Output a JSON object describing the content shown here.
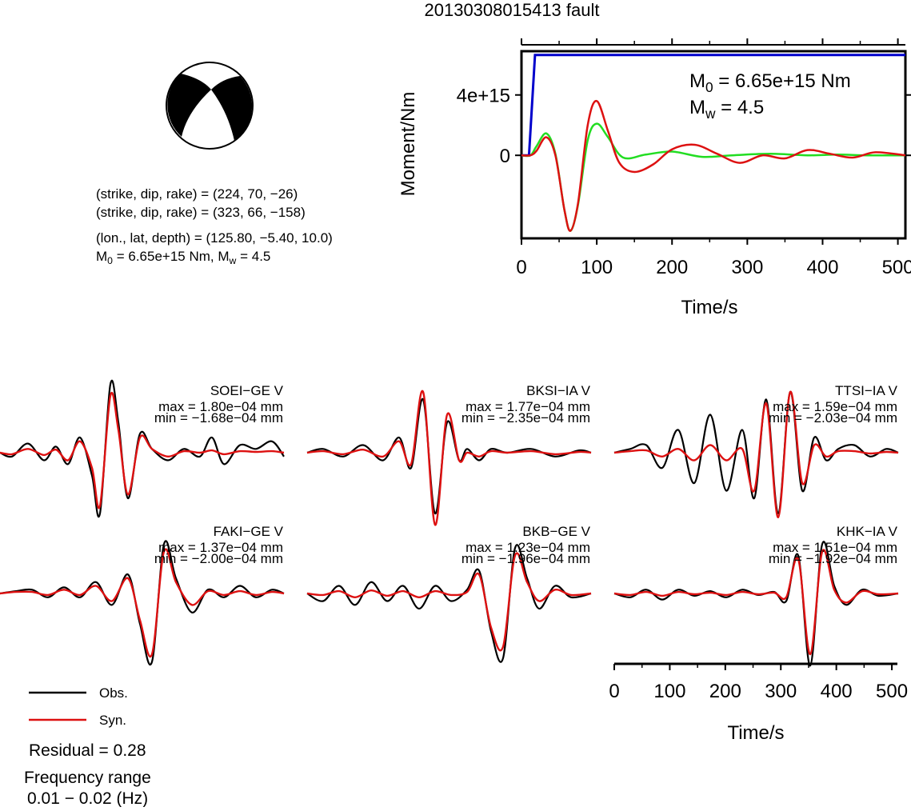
{
  "title": "20130308015413 fault",
  "colors": {
    "observed": "#000000",
    "synthetic": "#dd1111",
    "moment": "#0000cc",
    "source_fit": "#22dd22"
  },
  "focal_info": {
    "plane1": "(strike, dip, rake) = (224, 70, −26)",
    "plane2": "(strike, dip, rake) = (323, 66, −158)",
    "location": "(lon., lat, depth) = (125.80, −5.40, 10.0)",
    "moment_prefix": "M",
    "moment_sub": "0",
    "moment_rest": " = 6.65e+15 Nm, M",
    "mag_sub": "w",
    "mag_rest": " = 4.5"
  },
  "moment_plot": {
    "ylabel": "Moment/Nm",
    "xlabel": "Time/s",
    "x_ticks": [
      "0",
      "100",
      "200",
      "300",
      "400",
      "500"
    ],
    "y_ticks": [
      "0",
      "4e+15"
    ],
    "annot_m0": {
      "sym": "M",
      "sub": "0",
      "rest": " = 6.65e+15 Nm"
    },
    "annot_mw": {
      "sym": "M",
      "sub": "w",
      "rest": " = 4.5"
    }
  },
  "chart_data": [
    {
      "type": "line",
      "title": "",
      "xlabel": "Time/s",
      "ylabel": "Moment/Nm",
      "xlim": [
        0,
        510
      ],
      "ylim": [
        -5500000000000000.0,
        6900000000000000.0
      ],
      "series": [
        {
          "name": "",
          "color": "#0000cc",
          "x": [
            0,
            10,
            18,
            22,
            510
          ],
          "y": [
            0,
            0,
            6650000000000000.0,
            6650000000000000.0,
            6650000000000000.0
          ]
        },
        {
          "name": "",
          "color": "#22dd22",
          "x": [
            0,
            12,
            20,
            33,
            45,
            57,
            65,
            75,
            88,
            100,
            115,
            135,
            165,
            200,
            240,
            280,
            330,
            380,
            420,
            460,
            510
          ],
          "y": [
            0,
            0,
            600000000000000.0,
            1450000000000000.0,
            100000000000000.0,
            -3600000000000000.0,
            -5000000000000000.0,
            -3300000000000000.0,
            1000000000000000.0,
            2100000000000000.0,
            1200000000000000.0,
            -150000000000000.0,
            50000000000000.0,
            250000000000000.0,
            -100000000000000.0,
            0.0,
            100000000000000.0,
            0.0,
            50000000000000.0,
            0.0,
            0.0
          ]
        },
        {
          "name": "",
          "color": "#dd1111",
          "x": [
            0,
            12,
            20,
            33,
            45,
            57,
            65,
            75,
            88,
            100,
            115,
            130,
            150,
            175,
            200,
            230,
            260,
            290,
            320,
            350,
            380,
            410,
            440,
            470,
            510
          ],
          "y": [
            0,
            0,
            300000000000000.0,
            1200000000000000.0,
            0.0,
            -3600000000000000.0,
            -5000000000000000.0,
            -3200000000000000.0,
            2000000000000000.0,
            3600000000000000.0,
            1600000000000000.0,
            -500000000000000.0,
            -1100000000000000.0,
            -600000000000000.0,
            400000000000000.0,
            700000000000000.0,
            100000000000000.0,
            -500000000000000.0,
            0.0,
            -200000000000000.0,
            350000000000000.0,
            100000000000000.0,
            -150000000000000.0,
            200000000000000.0,
            0.0
          ]
        }
      ]
    },
    {
      "type": "line",
      "title": "",
      "xlabel": "Time/s",
      "xlim": [
        0,
        510
      ],
      "ylim": [
        -1,
        1
      ],
      "stations": [
        {
          "name": "SOEI−GE V",
          "max": "max = 1.80e−04 mm",
          "min": "min = −1.68e−04 mm",
          "x": [
            0,
            15,
            35,
            55,
            70,
            85,
            100,
            115,
            125,
            138,
            148,
            160,
            175,
            190,
            210,
            230,
            250,
            265,
            280,
            300,
            320,
            340,
            355
          ],
          "obs": [
            0,
            -0.05,
            0.12,
            -0.1,
            0.08,
            -0.15,
            0.2,
            -0.3,
            -0.8,
            0.9,
            0.4,
            -0.6,
            0.25,
            0.05,
            -0.1,
            0.05,
            -0.05,
            0.2,
            -0.15,
            0.1,
            0.05,
            0.15,
            -0.05
          ],
          "syn": [
            0,
            -0.02,
            0.05,
            -0.03,
            0.04,
            -0.1,
            0.15,
            -0.2,
            -0.7,
            0.75,
            0.3,
            -0.55,
            0.2,
            0.05,
            -0.05,
            0.02,
            0.0,
            0.03,
            -0.02,
            0.02,
            0.01,
            0.02,
            0.0
          ]
        },
        {
          "name": "BKSI−IA V",
          "max": "max = 1.77e−04 mm",
          "min": "min = −2.35e−04 mm",
          "x": [
            0,
            20,
            45,
            70,
            95,
            115,
            130,
            145,
            160,
            175,
            190,
            200,
            215,
            230,
            250,
            280,
            310,
            340,
            355
          ],
          "obs": [
            0,
            0.05,
            -0.05,
            0.1,
            -0.1,
            0.2,
            -0.2,
            0.7,
            -0.8,
            0.4,
            -0.1,
            0.05,
            -0.1,
            0.05,
            0.0,
            0.05,
            -0.05,
            0.03,
            0.0
          ],
          "syn": [
            0,
            0.02,
            -0.02,
            0.04,
            -0.05,
            0.15,
            -0.15,
            0.8,
            -0.95,
            0.5,
            -0.1,
            0.0,
            -0.05,
            0.02,
            0.0,
            0.02,
            -0.02,
            0.01,
            0.0
          ]
        },
        {
          "name": "TTSI−IA V",
          "max": "max = 1.59e−04 mm",
          "min": "min = −2.03e−04 mm",
          "x": [
            0,
            20,
            40,
            60,
            80,
            100,
            120,
            140,
            160,
            175,
            190,
            205,
            220,
            235,
            250,
            265,
            280,
            300,
            320,
            340,
            355
          ],
          "obs": [
            0,
            0.05,
            0.1,
            -0.2,
            0.3,
            -0.4,
            0.5,
            -0.5,
            0.3,
            -0.6,
            0.7,
            -0.8,
            0.8,
            -0.5,
            0.2,
            -0.1,
            0.05,
            0.1,
            -0.05,
            0.05,
            0.0
          ],
          "syn": [
            0,
            0.02,
            0.03,
            -0.05,
            0.05,
            -0.1,
            0.1,
            -0.1,
            0.05,
            -0.5,
            0.65,
            -0.85,
            0.8,
            -0.4,
            0.1,
            -0.05,
            0.02,
            0.02,
            -0.01,
            0.01,
            0.0
          ]
        },
        {
          "name": "FAKI−GE V",
          "max": "max = 1.37e−04 mm",
          "min": "min = −2.00e−04 mm",
          "x": [
            0,
            20,
            40,
            60,
            80,
            100,
            120,
            140,
            160,
            175,
            190,
            205,
            220,
            240,
            260,
            280,
            300,
            320,
            340,
            355
          ],
          "obs": [
            0,
            0.03,
            0.05,
            -0.05,
            0.08,
            -0.05,
            0.15,
            -0.15,
            0.25,
            -0.4,
            -0.9,
            0.65,
            0.2,
            -0.25,
            0.05,
            -0.05,
            0.1,
            -0.05,
            0.05,
            0.0
          ],
          "syn": [
            0,
            0.02,
            0.02,
            -0.02,
            0.05,
            -0.02,
            0.1,
            -0.1,
            0.2,
            -0.35,
            -0.8,
            0.55,
            0.15,
            -0.15,
            0.03,
            -0.02,
            0.03,
            -0.02,
            0.02,
            0.0
          ]
        },
        {
          "name": "BKB−GE V",
          "max": "max = 1.23e−04 mm",
          "min": "min = −1.96e−04 mm",
          "x": [
            0,
            20,
            40,
            60,
            80,
            100,
            120,
            140,
            160,
            180,
            200,
            215,
            230,
            245,
            260,
            275,
            290,
            310,
            330,
            355
          ],
          "obs": [
            0,
            -0.1,
            0.1,
            -0.15,
            0.15,
            -0.1,
            0.1,
            -0.2,
            0.1,
            -0.1,
            0.05,
            0.3,
            -0.5,
            -0.85,
            0.6,
            0.2,
            -0.2,
            0.1,
            -0.05,
            0.0
          ],
          "syn": [
            0,
            -0.02,
            0.03,
            -0.05,
            0.04,
            -0.03,
            0.03,
            -0.05,
            0.03,
            -0.02,
            0.02,
            0.25,
            -0.45,
            -0.7,
            0.5,
            0.15,
            -0.1,
            0.05,
            -0.02,
            0.0
          ]
        },
        {
          "name": "KHK−IA V",
          "max": "max = 1.51e−04 mm",
          "min": "min = −1.92e−04 mm",
          "x": [
            0,
            20,
            40,
            60,
            80,
            100,
            120,
            140,
            160,
            180,
            200,
            215,
            230,
            245,
            260,
            275,
            290,
            310,
            330,
            355
          ],
          "obs": [
            0,
            -0.05,
            0.05,
            -0.08,
            0.05,
            -0.03,
            0.03,
            -0.05,
            0.05,
            -0.02,
            0.02,
            -0.1,
            0.5,
            -0.95,
            0.65,
            0.1,
            -0.15,
            0.05,
            -0.03,
            0.0
          ],
          "syn": [
            0,
            -0.02,
            0.02,
            -0.03,
            0.02,
            -0.01,
            0.01,
            -0.02,
            0.02,
            -0.01,
            0.01,
            -0.05,
            0.45,
            -0.8,
            0.55,
            0.05,
            -0.12,
            0.03,
            -0.01,
            0.0
          ]
        }
      ]
    }
  ],
  "waveform_axis": {
    "x_ticks": [
      "0",
      "100",
      "200",
      "300",
      "400",
      "500"
    ],
    "xlabel": "Time/s"
  },
  "legend": {
    "observed": "Obs.",
    "synthetic": "Syn."
  },
  "residual": "Residual = 0.28",
  "freq_label": "Frequency range",
  "freq_range": "0.01 − 0.02 (Hz)"
}
